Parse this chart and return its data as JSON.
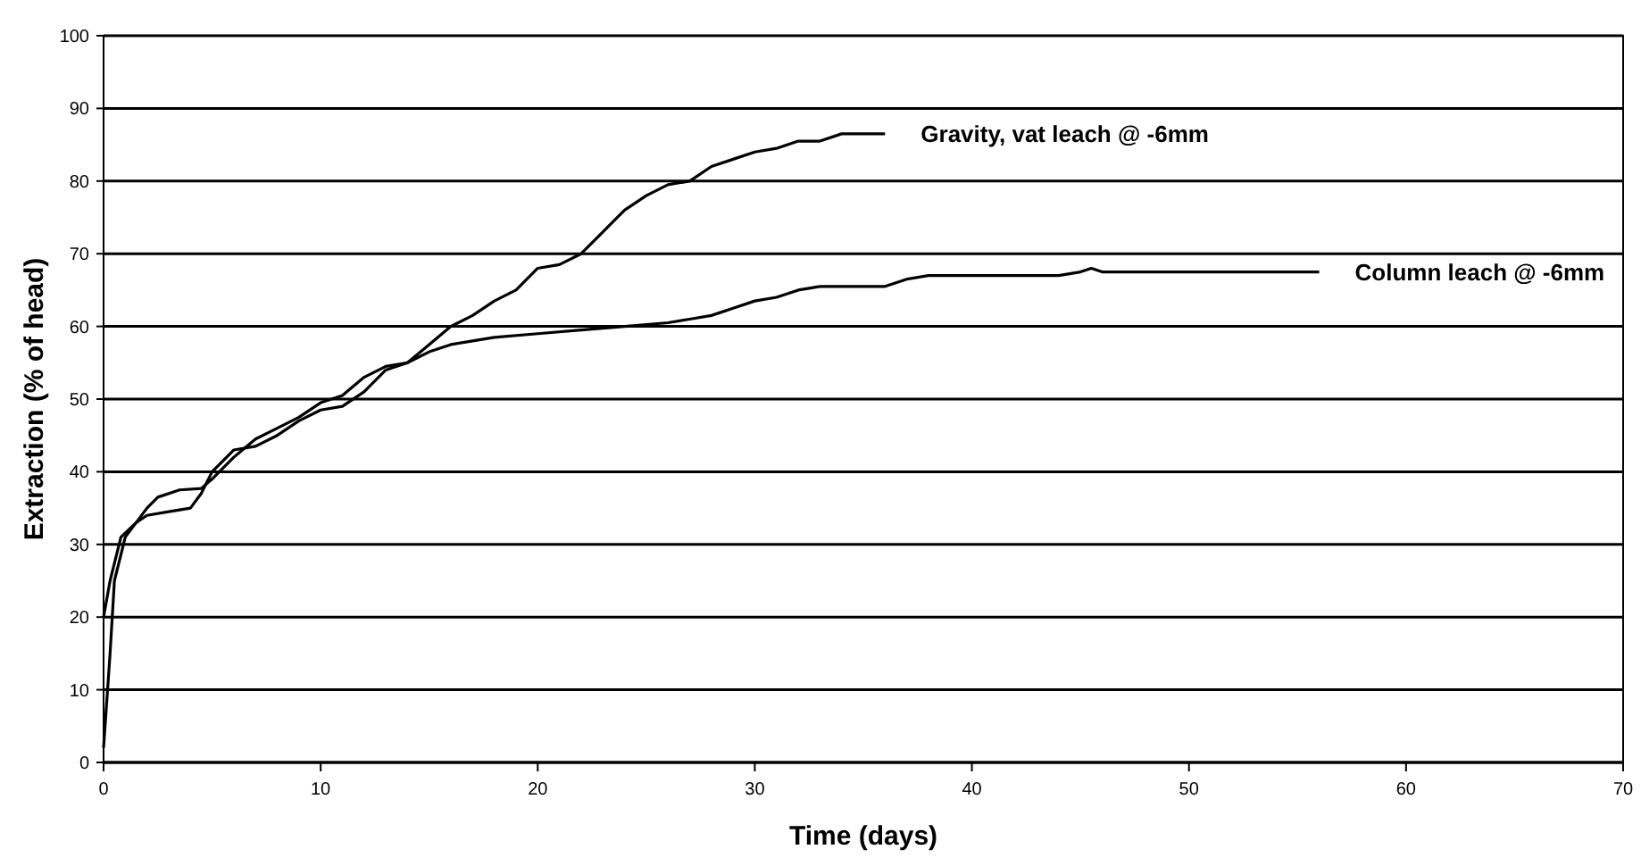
{
  "chart_data": {
    "type": "line",
    "xlabel": "Time (days)",
    "ylabel": "Extraction (% of head)",
    "xlim": [
      0,
      70
    ],
    "xticks": [
      0,
      10,
      20,
      30,
      40,
      50,
      60,
      70
    ],
    "ylim": [
      0,
      100
    ],
    "yticks": [
      0,
      10,
      20,
      30,
      40,
      50,
      60,
      70,
      80,
      90,
      100
    ],
    "grid": "y",
    "line_style": "solid",
    "series": [
      {
        "name": "Gravity, vat leach @ -6mm",
        "color": "#000000",
        "x": [
          0,
          0.3,
          0.5,
          1,
          1.5,
          2,
          3,
          4,
          4.5,
          5,
          6,
          7,
          8,
          9,
          10,
          11,
          12,
          13,
          14,
          15,
          16,
          17,
          18,
          19,
          20,
          21,
          22,
          23,
          24,
          25,
          26,
          27,
          28,
          29,
          30,
          31,
          32,
          33,
          34,
          36
        ],
        "values": [
          2,
          15,
          25,
          31,
          33,
          34,
          34.5,
          35,
          37,
          40,
          43,
          43.5,
          45,
          47,
          48.5,
          49,
          51,
          54,
          55,
          57.5,
          60,
          61.5,
          63.5,
          65,
          68,
          68.5,
          70,
          73,
          76,
          78,
          79.5,
          80,
          82,
          83,
          84,
          84.5,
          85.5,
          85.5,
          86.5,
          86.5
        ]
      },
      {
        "name": "Column leach @ -6mm",
        "color": "#000000",
        "x": [
          0,
          0.3,
          0.8,
          1.5,
          2,
          2.5,
          3.5,
          4.5,
          5,
          6,
          7,
          8,
          9,
          10,
          11,
          12,
          13,
          14,
          15,
          16,
          17,
          18,
          20,
          22,
          24,
          26,
          27,
          28,
          29,
          30,
          31,
          32,
          33,
          36,
          37,
          38,
          44,
          45,
          45.5,
          46,
          56
        ],
        "values": [
          20,
          25,
          31,
          33,
          35,
          36.5,
          37.5,
          37.7,
          39,
          42,
          44.5,
          46,
          47.5,
          49.5,
          50.5,
          53,
          54.5,
          55,
          56.5,
          57.5,
          58,
          58.5,
          59,
          59.5,
          60,
          60.5,
          61,
          61.5,
          62.5,
          63.5,
          64,
          65,
          65.5,
          65.5,
          66.5,
          67,
          67,
          67.5,
          68,
          67.5,
          67.5
        ]
      }
    ]
  }
}
